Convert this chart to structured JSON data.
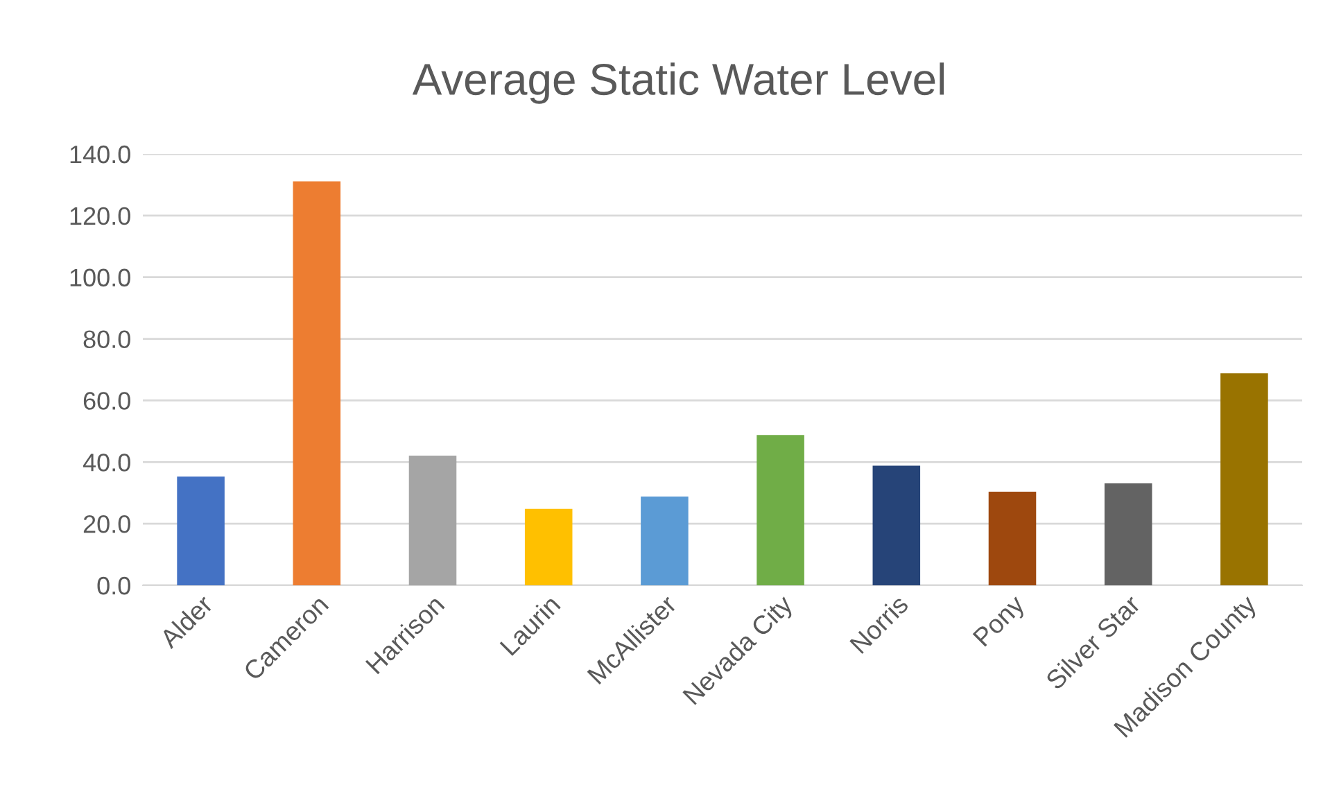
{
  "chart_data": {
    "type": "bar",
    "title": "Average Static Water Level",
    "categories": [
      "Alder",
      "Cameron",
      "Harrison",
      "Laurin",
      "McAllister",
      "Nevada City",
      "Norris",
      "Pony",
      "Silver Star",
      "Madison County"
    ],
    "values": [
      35.3,
      131.1,
      42.1,
      24.8,
      28.8,
      48.8,
      38.8,
      30.4,
      33.1,
      68.8
    ],
    "colors": [
      "#4472c4",
      "#ed7d31",
      "#a5a5a5",
      "#ffc000",
      "#5b9bd5",
      "#70ad47",
      "#264478",
      "#9e480e",
      "#636363",
      "#997300"
    ],
    "ylim": [
      0,
      140
    ],
    "yticks": [
      {
        "value": 0,
        "label": "0.0"
      },
      {
        "value": 20,
        "label": "20.0"
      },
      {
        "value": 40,
        "label": "40.0"
      },
      {
        "value": 60,
        "label": "60.0"
      },
      {
        "value": 80,
        "label": "80.0"
      },
      {
        "value": 100,
        "label": "100.0"
      },
      {
        "value": 120,
        "label": "120.0"
      },
      {
        "value": 140,
        "label": "140.0"
      }
    ],
    "grid": "y",
    "legend": false
  }
}
